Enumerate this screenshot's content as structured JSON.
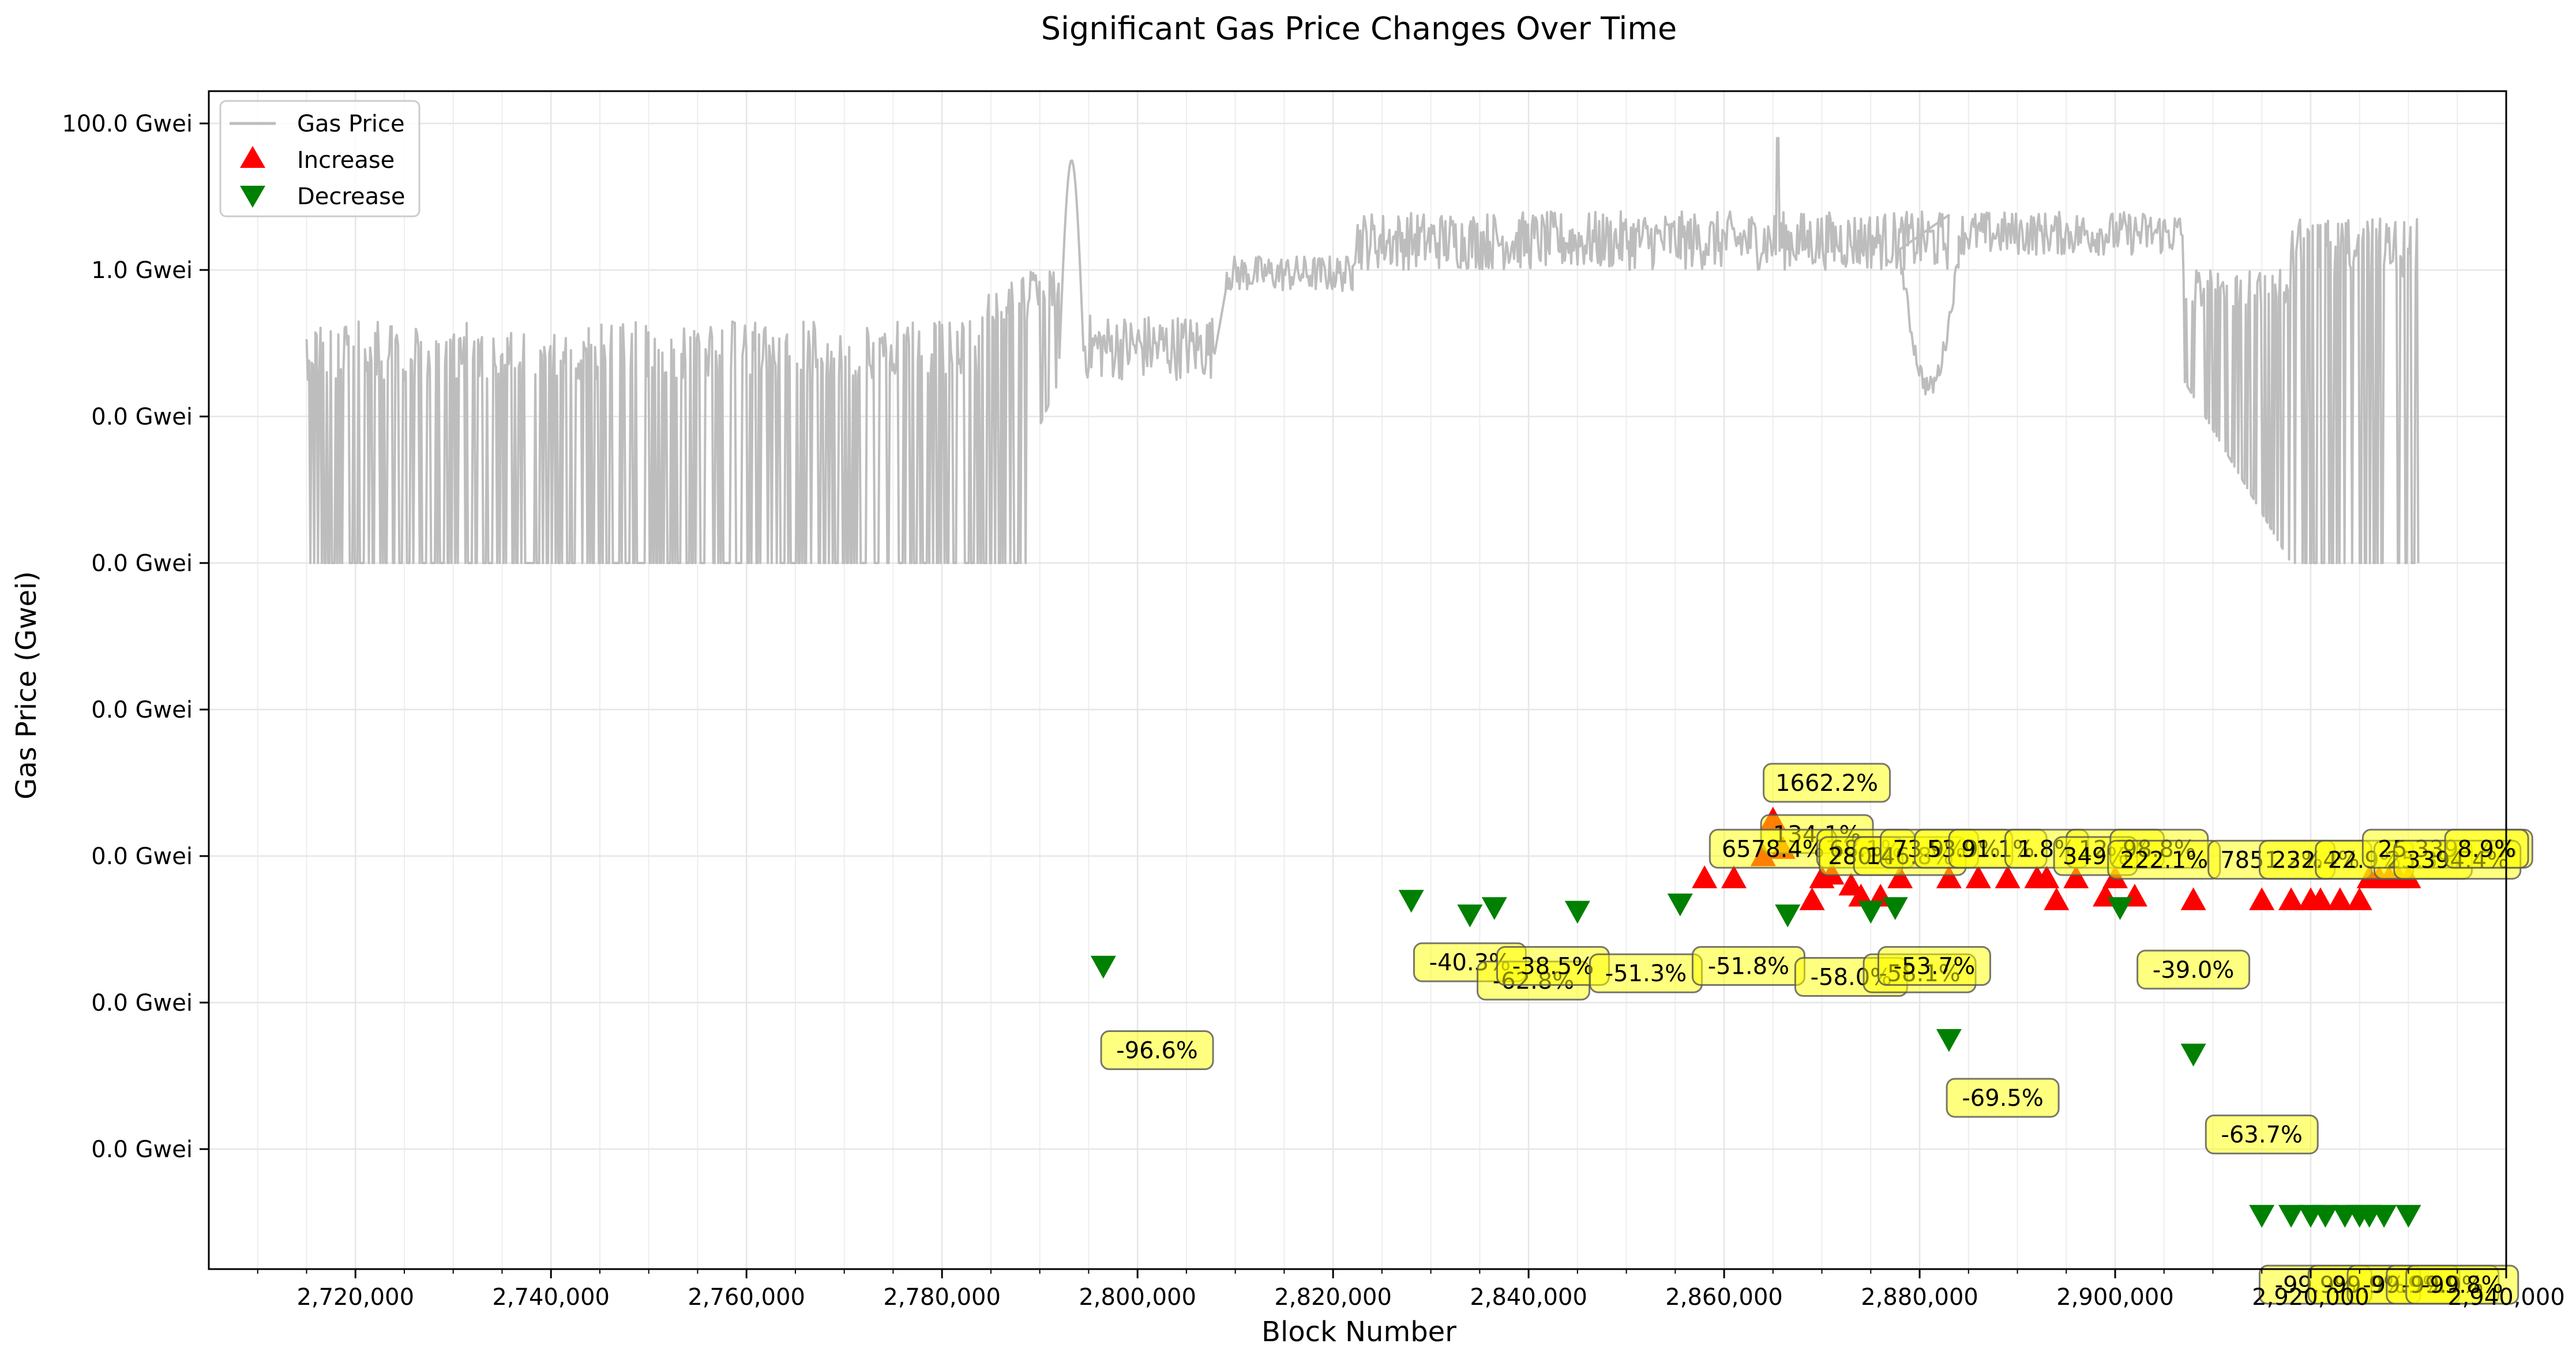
{
  "chart_data": {
    "type": "line",
    "title": "Significant Gas Price Changes Over Time",
    "xlabel": "Block Number",
    "ylabel": "Gas Price (Gwei)",
    "xlim": [
      2705000,
      2940000
    ],
    "y_scale": "log",
    "ylim_log10": [
      -8.4,
      2.2
    ],
    "grid": true,
    "legend_position": "top-left",
    "x_ticks": [
      {
        "value": 2720000,
        "label": "2,720,000"
      },
      {
        "value": 2740000,
        "label": "2,740,000"
      },
      {
        "value": 2760000,
        "label": "2,760,000"
      },
      {
        "value": 2780000,
        "label": "2,780,000"
      },
      {
        "value": 2800000,
        "label": "2,800,000"
      },
      {
        "value": 2820000,
        "label": "2,820,000"
      },
      {
        "value": 2840000,
        "label": "2,840,000"
      },
      {
        "value": 2860000,
        "label": "2,860,000"
      },
      {
        "value": 2880000,
        "label": "2,880,000"
      },
      {
        "value": 2900000,
        "label": "2,900,000"
      },
      {
        "value": 2920000,
        "label": "2,920,000"
      },
      {
        "value": 2940000,
        "label": "2,940,000"
      }
    ],
    "y_ticks": [
      {
        "log10": 2,
        "label": "100.0 Gwei"
      },
      {
        "log10": 0,
        "label": "1.0 Gwei"
      },
      {
        "log10": -2,
        "label": "0.0 Gwei"
      },
      {
        "log10": -4,
        "label": "0.0 Gwei"
      },
      {
        "log10": -6,
        "label": "0.0 Gwei"
      },
      {
        "log10": -8,
        "label": "0.0 Gwei"
      },
      {
        "log10": -10,
        "label": "0.0 Gwei"
      },
      {
        "log10": -12,
        "label": "0.0 Gwei"
      }
    ],
    "series": [
      {
        "name": "Gas Price",
        "color": "#bdbdbd",
        "segments": [
          {
            "x": [
              2715000,
              2784000
            ],
            "regime": "oscillating",
            "low_log10": -4.0,
            "high_log10": -0.7
          },
          {
            "x": [
              2784000,
              2792000
            ],
            "regime": "rising",
            "from_log10": -4.0,
            "to_log10": -1.5
          },
          {
            "x": [
              2792000,
              2794500
            ],
            "regime": "spike",
            "peak_log10": 1.5
          },
          {
            "x": [
              2794500,
              2808000
            ],
            "regime": "band",
            "low_log10": -1.5,
            "high_log10": -0.6
          },
          {
            "x": [
              2809000,
              2822000
            ],
            "regime": "band",
            "low_log10": -0.3,
            "high_log10": 0.2
          },
          {
            "x": [
              2822000,
              2883000
            ],
            "regime": "band",
            "low_log10": 0.0,
            "high_log10": 0.8,
            "spike_x": 2865500,
            "spike_log10": 1.8
          },
          {
            "x": [
              2878000,
              2884000
            ],
            "regime": "dip",
            "min_log10": -1.6
          },
          {
            "x": [
              2884000,
              2907000
            ],
            "regime": "band",
            "low_log10": 0.2,
            "high_log10": 0.8
          },
          {
            "x": [
              2907000,
              2918000
            ],
            "regime": "falling",
            "from_log10": -1.5,
            "to_log10": -4.0
          },
          {
            "x": [
              2918000,
              2931000
            ],
            "regime": "oscillating",
            "low_log10": -4.0,
            "high_log10": 0.7
          }
        ]
      },
      {
        "name": "Increase",
        "color": "#ff0000",
        "marker": "triangle-up",
        "points": [
          {
            "x": 2858000,
            "log10": -8.3
          },
          {
            "x": 2861000,
            "log10": -8.3
          },
          {
            "x": 2864000,
            "log10": -8.0
          },
          {
            "x": 2865000,
            "log10": -7.5
          },
          {
            "x": 2866000,
            "log10": -7.9
          },
          {
            "x": 2869000,
            "log10": -8.6
          },
          {
            "x": 2870000,
            "log10": -8.3
          },
          {
            "x": 2871000,
            "log10": -8.25
          },
          {
            "x": 2873000,
            "log10": -8.4
          },
          {
            "x": 2874000,
            "log10": -8.55
          },
          {
            "x": 2876000,
            "log10": -8.55
          },
          {
            "x": 2878000,
            "log10": -8.3
          },
          {
            "x": 2883000,
            "log10": -8.3
          },
          {
            "x": 2886000,
            "log10": -8.3
          },
          {
            "x": 2889000,
            "log10": -8.3
          },
          {
            "x": 2892000,
            "log10": -8.3
          },
          {
            "x": 2893000,
            "log10": -8.3
          },
          {
            "x": 2894000,
            "log10": -8.6
          },
          {
            "x": 2896000,
            "log10": -8.3
          },
          {
            "x": 2899000,
            "log10": -8.55
          },
          {
            "x": 2900000,
            "log10": -8.3
          },
          {
            "x": 2902000,
            "log10": -8.55
          },
          {
            "x": 2908000,
            "log10": -8.6
          },
          {
            "x": 2915000,
            "log10": -8.6
          },
          {
            "x": 2918000,
            "log10": -8.6
          },
          {
            "x": 2920000,
            "log10": -8.6
          },
          {
            "x": 2921000,
            "log10": -8.6
          },
          {
            "x": 2923000,
            "log10": -8.6
          },
          {
            "x": 2925000,
            "log10": -8.6
          },
          {
            "x": 2926000,
            "log10": -8.3
          },
          {
            "x": 2927000,
            "log10": -8.3
          },
          {
            "x": 2928000,
            "log10": -8.3
          },
          {
            "x": 2929000,
            "log10": -8.3
          },
          {
            "x": 2930000,
            "log10": -8.3
          }
        ]
      },
      {
        "name": "Decrease",
        "color": "#008000",
        "marker": "triangle-down",
        "points": [
          {
            "x": 2796500,
            "log10": -9.5
          },
          {
            "x": 2828000,
            "log10": -8.6
          },
          {
            "x": 2834000,
            "log10": -8.8
          },
          {
            "x": 2836500,
            "log10": -8.7
          },
          {
            "x": 2845000,
            "log10": -8.75
          },
          {
            "x": 2855500,
            "log10": -8.65
          },
          {
            "x": 2866500,
            "log10": -8.8
          },
          {
            "x": 2875000,
            "log10": -8.75
          },
          {
            "x": 2877500,
            "log10": -8.7
          },
          {
            "x": 2883000,
            "log10": -10.5
          },
          {
            "x": 2900500,
            "log10": -8.7
          },
          {
            "x": 2908000,
            "log10": -10.7
          },
          {
            "x": 2915000,
            "log10": -12.9
          },
          {
            "x": 2918000,
            "log10": -12.9
          },
          {
            "x": 2920000,
            "log10": -12.9
          },
          {
            "x": 2921500,
            "log10": -12.9
          },
          {
            "x": 2923500,
            "log10": -12.9
          },
          {
            "x": 2925000,
            "log10": -12.9
          },
          {
            "x": 2926000,
            "log10": -12.9
          },
          {
            "x": 2927500,
            "log10": -12.9
          },
          {
            "x": 2930000,
            "log10": -12.9
          }
        ]
      }
    ],
    "annotations": [
      {
        "text": "1662.2%",
        "x": 2870500,
        "log10": -7.0
      },
      {
        "text": "134.1%",
        "x": 2869500,
        "log10": -7.7
      },
      {
        "text": "6578.4%",
        "x": 2865000,
        "log10": -7.9
      },
      {
        "text": "68.1%",
        "x": 2874500,
        "log10": -7.9
      },
      {
        "text": "280%",
        "x": 2874000,
        "log10": -8.0
      },
      {
        "text": "146.8%",
        "x": 2879000,
        "log10": -8.0
      },
      {
        "text": "73.9%",
        "x": 2881000,
        "log10": -7.9
      },
      {
        "text": "53.9%",
        "x": 2884500,
        "log10": -7.9
      },
      {
        "text": "91.1%",
        "x": 2888000,
        "log10": -7.9
      },
      {
        "text": "1.8%",
        "x": 2893000,
        "log10": -7.9
      },
      {
        "text": "12.3%",
        "x": 2900000,
        "log10": -7.9
      },
      {
        "text": "349%",
        "x": 2898000,
        "log10": -8.0
      },
      {
        "text": "98.8%",
        "x": 2904500,
        "log10": -7.9
      },
      {
        "text": "222.1%",
        "x": 2905000,
        "log10": -8.05
      },
      {
        "text": "7851.2%",
        "x": 2916000,
        "log10": -8.05
      },
      {
        "text": "232.4%",
        "x": 2920500,
        "log10": -8.05
      },
      {
        "text": "22.9%",
        "x": 2925500,
        "log10": -8.05
      },
      {
        "text": "25.3%",
        "x": 2931500,
        "log10": -8.05
      },
      {
        "text": "25.3394.4%",
        "x": 2934000,
        "log10": -7.9
      },
      {
        "text": "3394.4%",
        "x": 2935000,
        "log10": -8.05
      },
      {
        "text": "8.9%",
        "x": 2938000,
        "log10": -7.9
      },
      {
        "text": "-96.6%",
        "x": 2802000,
        "log10": -10.65
      },
      {
        "text": "-40.3%",
        "x": 2834000,
        "log10": -9.45
      },
      {
        "text": "-62.8%",
        "x": 2840500,
        "log10": -9.7
      },
      {
        "text": "-38.5%",
        "x": 2842500,
        "log10": -9.5
      },
      {
        "text": "-51.3%",
        "x": 2852000,
        "log10": -9.6
      },
      {
        "text": "-51.8%",
        "x": 2862500,
        "log10": -9.5
      },
      {
        "text": "-58.0%",
        "x": 2873000,
        "log10": -9.65
      },
      {
        "text": "-58.1%",
        "x": 2880000,
        "log10": -9.6
      },
      {
        "text": "-53.7%",
        "x": 2881500,
        "log10": -9.5
      },
      {
        "text": "-69.5%",
        "x": 2888500,
        "log10": -11.3
      },
      {
        "text": "-39.0%",
        "x": 2908000,
        "log10": -9.55
      },
      {
        "text": "-63.7%",
        "x": 2915000,
        "log10": -11.8
      },
      {
        "text": "-99.9%",
        "x": 2920500,
        "log10": -14.3
      },
      {
        "text": "-99.9%",
        "x": 2925500,
        "log10": -14.3
      },
      {
        "text": "-99.9%",
        "x": 2929500,
        "log10": -14.3
      },
      {
        "text": "-99.9%",
        "x": 2933500,
        "log10": -14.3
      },
      {
        "text": "-99.8%",
        "x": 2935500,
        "log10": -14.3
      }
    ]
  }
}
